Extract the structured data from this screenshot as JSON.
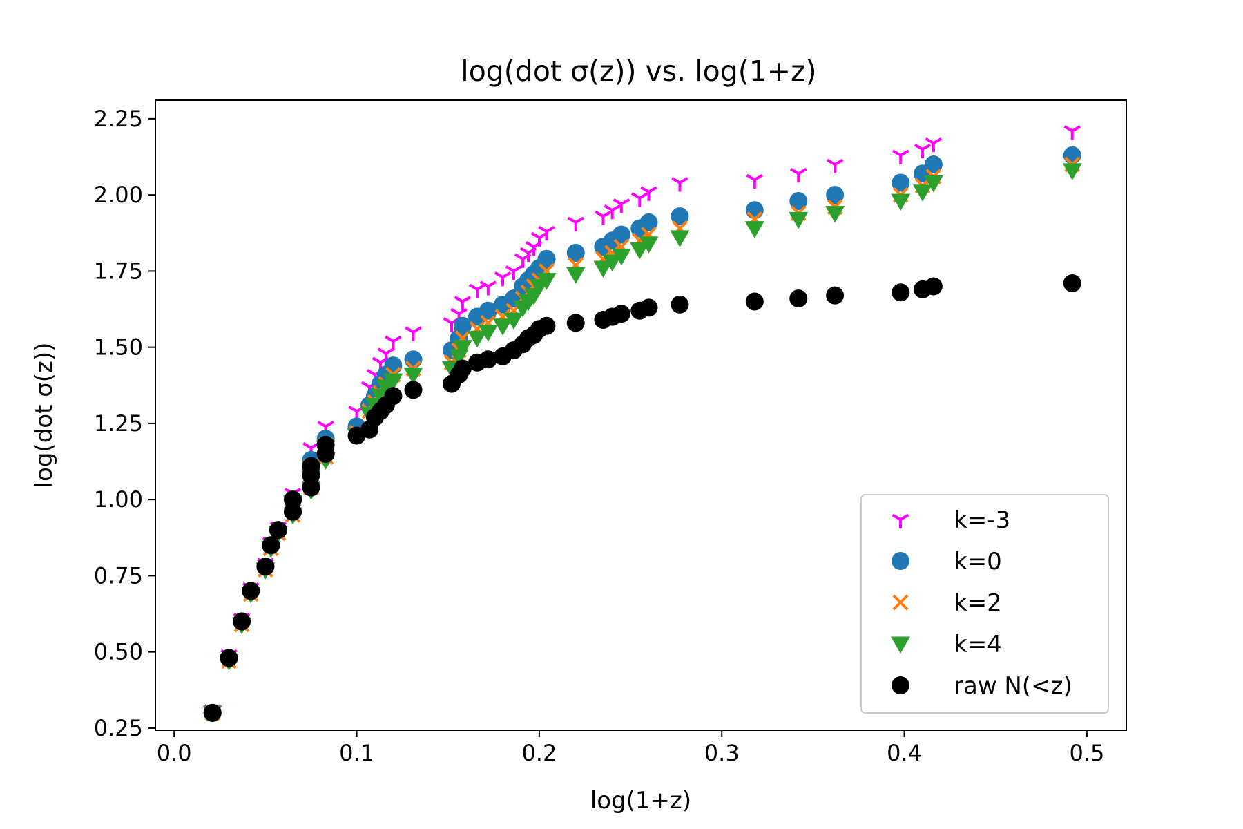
{
  "chart_data": {
    "type": "scatter",
    "title": "log(dot σ(z)) vs. log(1+z)",
    "xlabel": "log(1+z)",
    "ylabel": "log(dot σ(z))",
    "xlim": [
      -0.0103,
      0.5216
    ],
    "ylim": [
      0.243,
      2.311
    ],
    "x_ticks": [
      0.0,
      0.1,
      0.2,
      0.3,
      0.4,
      0.5
    ],
    "x_tick_labels": [
      "0.0",
      "0.1",
      "0.2",
      "0.3",
      "0.4",
      "0.5"
    ],
    "y_ticks": [
      0.25,
      0.5,
      0.75,
      1.0,
      1.25,
      1.5,
      1.75,
      2.0,
      2.25
    ],
    "y_tick_labels": [
      "0.25",
      "0.50",
      "0.75",
      "1.00",
      "1.25",
      "1.50",
      "1.75",
      "2.00",
      "2.25"
    ],
    "grid": false,
    "legend_position": "lower right",
    "x": [
      0.021,
      0.03,
      0.037,
      0.042,
      0.05,
      0.053,
      0.057,
      0.065,
      0.065,
      0.075,
      0.075,
      0.075,
      0.083,
      0.083,
      0.1,
      0.107,
      0.11,
      0.113,
      0.116,
      0.12,
      0.131,
      0.152,
      0.156,
      0.158,
      0.166,
      0.172,
      0.18,
      0.186,
      0.191,
      0.194,
      0.197,
      0.2,
      0.204,
      0.22,
      0.235,
      0.24,
      0.245,
      0.255,
      0.26,
      0.277,
      0.318,
      0.342,
      0.362,
      0.398,
      0.41,
      0.416,
      0.492
    ],
    "series": [
      {
        "name": "k=-3",
        "color": "#ff00ff",
        "marker": "tri_down",
        "values": [
          0.31,
          0.49,
          0.61,
          0.71,
          0.79,
          0.86,
          0.91,
          0.97,
          1.02,
          1.06,
          1.1,
          1.17,
          1.19,
          1.24,
          1.29,
          1.37,
          1.41,
          1.45,
          1.48,
          1.52,
          1.55,
          1.58,
          1.61,
          1.65,
          1.69,
          1.7,
          1.73,
          1.75,
          1.79,
          1.81,
          1.83,
          1.86,
          1.88,
          1.91,
          1.93,
          1.95,
          1.97,
          1.99,
          2.01,
          2.04,
          2.05,
          2.07,
          2.1,
          2.13,
          2.15,
          2.17,
          2.21
        ]
      },
      {
        "name": "k=0",
        "color": "#1f77b4",
        "marker": "circle",
        "values": [
          0.3,
          0.48,
          0.6,
          0.7,
          0.78,
          0.85,
          0.9,
          0.96,
          1.0,
          1.05,
          1.09,
          1.13,
          1.15,
          1.2,
          1.24,
          1.31,
          1.34,
          1.38,
          1.41,
          1.44,
          1.46,
          1.49,
          1.53,
          1.57,
          1.6,
          1.62,
          1.64,
          1.66,
          1.7,
          1.72,
          1.74,
          1.76,
          1.79,
          1.81,
          1.83,
          1.85,
          1.87,
          1.89,
          1.91,
          1.93,
          1.95,
          1.98,
          2.0,
          2.04,
          2.07,
          2.1,
          2.13
        ]
      },
      {
        "name": "k=2",
        "color": "#ff7f0e",
        "marker": "x",
        "values": [
          0.3,
          0.47,
          0.59,
          0.69,
          0.77,
          0.84,
          0.89,
          0.95,
          0.99,
          1.04,
          1.08,
          1.11,
          1.14,
          1.18,
          1.22,
          1.29,
          1.32,
          1.35,
          1.38,
          1.41,
          1.43,
          1.45,
          1.49,
          1.53,
          1.56,
          1.58,
          1.6,
          1.62,
          1.66,
          1.68,
          1.7,
          1.72,
          1.75,
          1.77,
          1.79,
          1.81,
          1.83,
          1.85,
          1.87,
          1.89,
          1.92,
          1.94,
          1.96,
          2.0,
          2.03,
          2.06,
          2.1
        ]
      },
      {
        "name": "k=4",
        "color": "#2ca02c",
        "marker": "triangle_down",
        "values": [
          0.3,
          0.47,
          0.59,
          0.69,
          0.77,
          0.84,
          0.89,
          0.95,
          0.99,
          1.03,
          1.07,
          1.1,
          1.13,
          1.17,
          1.21,
          1.28,
          1.31,
          1.34,
          1.37,
          1.39,
          1.41,
          1.43,
          1.47,
          1.5,
          1.53,
          1.55,
          1.57,
          1.59,
          1.63,
          1.65,
          1.67,
          1.7,
          1.72,
          1.74,
          1.76,
          1.78,
          1.8,
          1.82,
          1.84,
          1.86,
          1.89,
          1.92,
          1.94,
          1.98,
          2.01,
          2.04,
          2.08
        ]
      },
      {
        "name": "raw N(<z)",
        "color": "#000000",
        "marker": "circle",
        "values": [
          0.3,
          0.48,
          0.6,
          0.7,
          0.78,
          0.85,
          0.9,
          0.96,
          1.0,
          1.04,
          1.08,
          1.11,
          1.15,
          1.18,
          1.21,
          1.23,
          1.27,
          1.29,
          1.31,
          1.34,
          1.36,
          1.38,
          1.41,
          1.43,
          1.45,
          1.46,
          1.47,
          1.49,
          1.51,
          1.53,
          1.54,
          1.56,
          1.57,
          1.58,
          1.59,
          1.6,
          1.61,
          1.62,
          1.63,
          1.64,
          1.65,
          1.66,
          1.67,
          1.68,
          1.69,
          1.7,
          1.71
        ]
      }
    ]
  }
}
